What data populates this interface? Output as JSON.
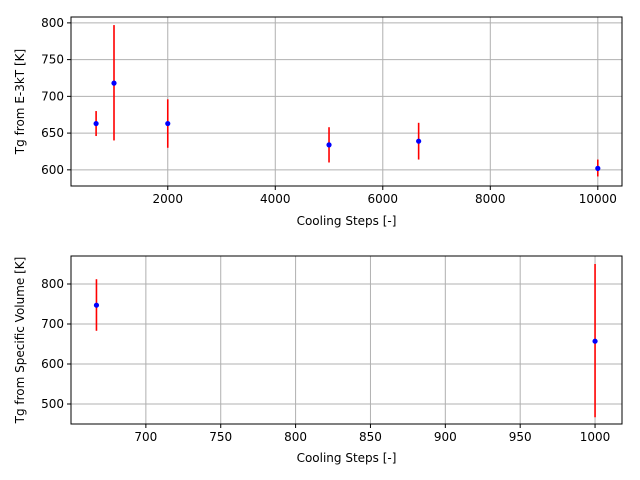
{
  "colors": {
    "background": "#ffffff",
    "marker": "#0000ff",
    "errorbar": "#ff0000",
    "grid": "#b0b0b0",
    "axes": "#000000"
  },
  "chart_data": [
    {
      "type": "scatter",
      "xlabel": "Cooling Steps [-]",
      "ylabel": "Tg from E-3kT [K]",
      "xlim": [
        200,
        10450
      ],
      "ylim": [
        578,
        808
      ],
      "xticks": [
        2000,
        4000,
        6000,
        8000,
        10000
      ],
      "yticks": [
        600,
        650,
        700,
        750,
        800
      ],
      "grid": true,
      "errorbar_style": "vertical, no caps",
      "points": [
        {
          "x": 667,
          "y": 663,
          "ylo": 646,
          "yhi": 680
        },
        {
          "x": 1000,
          "y": 718,
          "ylo": 640,
          "yhi": 797
        },
        {
          "x": 2000,
          "y": 663,
          "ylo": 630,
          "yhi": 696
        },
        {
          "x": 5000,
          "y": 634,
          "ylo": 610,
          "yhi": 658
        },
        {
          "x": 6667,
          "y": 639,
          "ylo": 614,
          "yhi": 664
        },
        {
          "x": 10000,
          "y": 602,
          "ylo": 591,
          "yhi": 614
        }
      ]
    },
    {
      "type": "scatter",
      "xlabel": "Cooling Steps [-]",
      "ylabel": "Tg from Specific Volume [K]",
      "xlim": [
        650,
        1018
      ],
      "ylim": [
        450,
        870
      ],
      "xticks": [
        700,
        750,
        800,
        850,
        900,
        950,
        1000
      ],
      "yticks": [
        500,
        600,
        700,
        800
      ],
      "grid": true,
      "errorbar_style": "vertical, no caps",
      "points": [
        {
          "x": 667,
          "y": 747,
          "ylo": 683,
          "yhi": 812
        },
        {
          "x": 1000,
          "y": 657,
          "ylo": 467,
          "yhi": 850
        }
      ]
    }
  ]
}
